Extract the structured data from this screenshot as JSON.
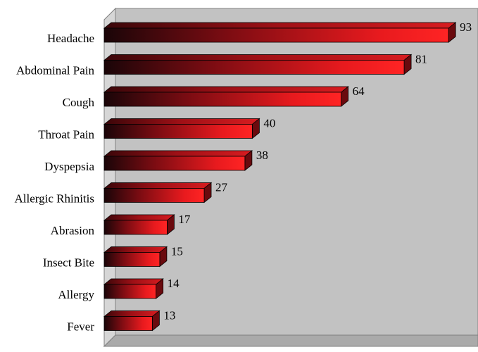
{
  "chart_data": {
    "type": "bar",
    "orientation": "horizontal",
    "style": "3d",
    "title": "",
    "xlabel": "",
    "ylabel": "",
    "categories": [
      "Headache",
      "Abdominal Pain",
      "Cough",
      "Throat Pain",
      "Dyspepsia",
      "Allergic Rhinitis",
      "Abrasion",
      "Insect Bite",
      "Allergy",
      "Fever"
    ],
    "values": [
      93,
      81,
      64,
      40,
      38,
      27,
      17,
      15,
      14,
      13
    ],
    "xlim": [
      0,
      100
    ],
    "grid": false,
    "legend": "none",
    "data_labels": true
  },
  "colors": {
    "bar_dark": "#1a0508",
    "bar_mid": "#7a0c12",
    "bar_bright": "#ff2020",
    "bar_top": "#c8181c",
    "bar_side": "#6a0a0e",
    "plot_back": "#c2c2c2",
    "plot_floor": "#aaaaaa",
    "plot_wall_left": "#d6d6d6",
    "outline": "#000000"
  }
}
